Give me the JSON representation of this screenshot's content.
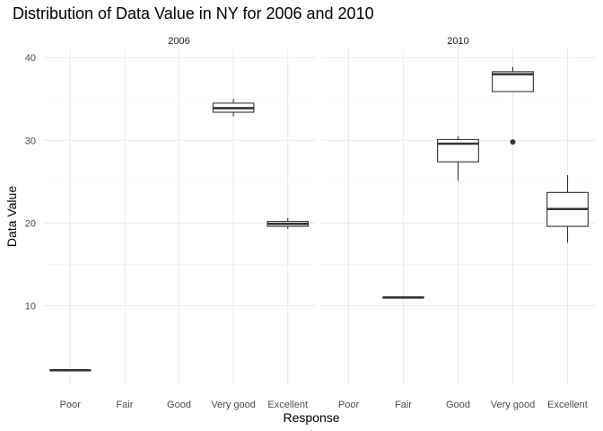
{
  "chart_data": {
    "type": "boxplot",
    "title": "Distribution of Data Value in NY for 2006 and 2010",
    "xlabel": "Response",
    "ylabel": "Data Value",
    "categories": [
      "Poor",
      "Fair",
      "Good",
      "Very good",
      "Excellent"
    ],
    "ylim": [
      0.5,
      41
    ],
    "yticks": [
      10,
      20,
      30,
      40
    ],
    "y_minor_ticks": [
      15,
      25,
      35
    ],
    "grid": true,
    "colors": {
      "box_stroke": "#333333",
      "grid": "#ebebeb",
      "background": "#ffffff"
    },
    "panels": [
      {
        "label": "2006",
        "boxes": [
          {
            "category": "Poor",
            "min": 2.2,
            "q1": 2.2,
            "median": 2.2,
            "q3": 2.2,
            "max": 2.2,
            "outliers": []
          },
          {
            "category": "Very good",
            "min": 32.9,
            "q1": 33.4,
            "median": 33.9,
            "q3": 34.5,
            "max": 35.0,
            "outliers": []
          },
          {
            "category": "Excellent",
            "min": 19.3,
            "q1": 19.6,
            "median": 19.9,
            "q3": 20.2,
            "max": 20.6,
            "outliers": []
          }
        ]
      },
      {
        "label": "2010",
        "boxes": [
          {
            "category": "Fair",
            "min": 11.0,
            "q1": 11.0,
            "median": 11.0,
            "q3": 11.0,
            "max": 11.0,
            "outliers": []
          },
          {
            "category": "Good",
            "min": 25.1,
            "q1": 27.4,
            "median": 29.6,
            "q3": 30.1,
            "max": 30.5,
            "outliers": []
          },
          {
            "category": "Very good",
            "min": 35.9,
            "q1": 35.9,
            "median": 38.0,
            "q3": 38.3,
            "max": 38.9,
            "outliers": [
              29.8
            ]
          },
          {
            "category": "Excellent",
            "min": 17.6,
            "q1": 19.6,
            "median": 21.7,
            "q3": 23.7,
            "max": 25.8,
            "outliers": []
          }
        ]
      }
    ]
  }
}
